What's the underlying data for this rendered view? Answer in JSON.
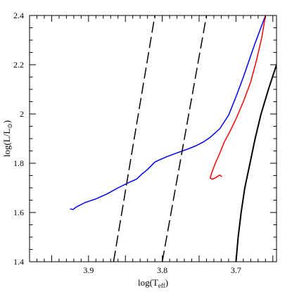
{
  "chart_data": {
    "type": "line",
    "title": "",
    "xlabel": "log(T_eff)",
    "ylabel": "log(L/L_⊙)",
    "xlim": [
      3.98,
      3.645
    ],
    "ylim": [
      1.4,
      2.4
    ],
    "x_ticks": [
      3.9,
      3.8,
      3.7
    ],
    "x_tick_labels": [
      "3.9",
      "3.8",
      "3.7"
    ],
    "y_ticks": [
      1.4,
      1.6,
      1.8,
      2.0,
      2.2,
      2.4
    ],
    "y_tick_labels": [
      "1.4",
      "1.6",
      "1.8",
      "2",
      "2.2",
      "2.4"
    ],
    "grid": false,
    "series": [
      {
        "color": "#0000ff",
        "style": "solid",
        "x": [
          3.925,
          3.921,
          3.918,
          3.915,
          3.905,
          3.89,
          3.875,
          3.86,
          3.845,
          3.835,
          3.828,
          3.82,
          3.81,
          3.795,
          3.78,
          3.765,
          3.755,
          3.745,
          3.735,
          3.722,
          3.71,
          3.7,
          3.69,
          3.675,
          3.66
        ],
        "y": [
          1.615,
          1.612,
          1.619,
          1.625,
          1.64,
          1.655,
          1.675,
          1.7,
          1.722,
          1.735,
          1.755,
          1.775,
          1.805,
          1.825,
          1.842,
          1.858,
          1.87,
          1.885,
          1.905,
          1.94,
          1.995,
          2.07,
          2.15,
          2.28,
          2.4
        ]
      },
      {
        "color": "#ff0000",
        "style": "solid",
        "x": [
          3.719,
          3.722,
          3.727,
          3.732,
          3.735,
          3.733,
          3.728,
          3.722,
          3.716,
          3.708,
          3.7,
          3.69,
          3.68,
          3.672,
          3.665,
          3.66
        ],
        "y": [
          1.745,
          1.752,
          1.742,
          1.735,
          1.74,
          1.76,
          1.8,
          1.84,
          1.885,
          1.93,
          1.98,
          2.05,
          2.13,
          2.22,
          2.31,
          2.4
        ]
      },
      {
        "color": "#000000",
        "style": "solid",
        "x": [
          3.7,
          3.697,
          3.693,
          3.688,
          3.681,
          3.674,
          3.666,
          3.656,
          3.645
        ],
        "y": [
          1.4,
          1.5,
          1.6,
          1.7,
          1.8,
          1.9,
          2.0,
          2.1,
          2.2
        ]
      },
      {
        "color": "#000000",
        "style": "dashed",
        "x": [
          3.866,
          3.81
        ],
        "y": [
          1.4,
          2.4
        ]
      },
      {
        "color": "#000000",
        "style": "dashed",
        "x": [
          3.8,
          3.74
        ],
        "y": [
          1.4,
          2.4
        ]
      }
    ]
  }
}
